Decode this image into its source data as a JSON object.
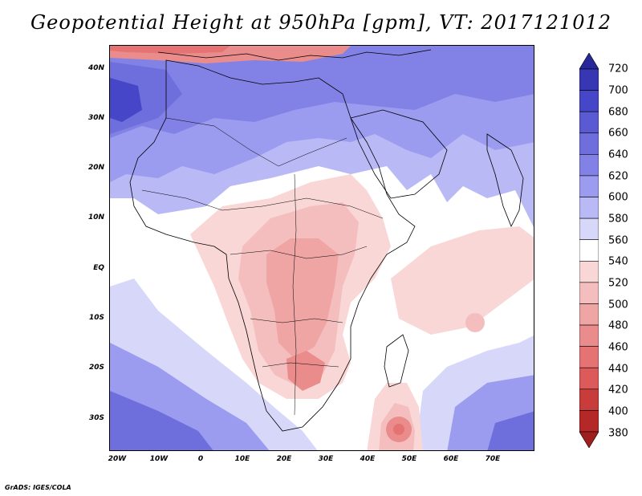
{
  "title": "Geopotential Height at 950hPa [gpm], VT: 2017121012",
  "credit": "GrADS: IGES/COLA",
  "axes": {
    "lat_labels": [
      "40N",
      "30N",
      "20N",
      "10N",
      "EQ",
      "10S",
      "20S",
      "30S"
    ],
    "lon_labels": [
      "20W",
      "10W",
      "0",
      "10E",
      "20E",
      "30E",
      "40E",
      "50E",
      "60E",
      "70E"
    ]
  },
  "colorbar": {
    "levels": [
      "720",
      "700",
      "680",
      "660",
      "640",
      "620",
      "600",
      "580",
      "560",
      "540",
      "520",
      "500",
      "480",
      "460",
      "440",
      "420",
      "400",
      "380"
    ],
    "colors": [
      "#28289b",
      "#3737b4",
      "#4646c8",
      "#5a5ad2",
      "#6e6edc",
      "#8282e6",
      "#9b9bf0",
      "#b9b9f5",
      "#d7d7fa",
      "#ffffff",
      "#fad7d7",
      "#f5bebe",
      "#f0a5a5",
      "#eb8c8c",
      "#e67373",
      "#dc5a5a",
      "#c83c3c",
      "#b42828",
      "#a01e1e"
    ]
  }
}
